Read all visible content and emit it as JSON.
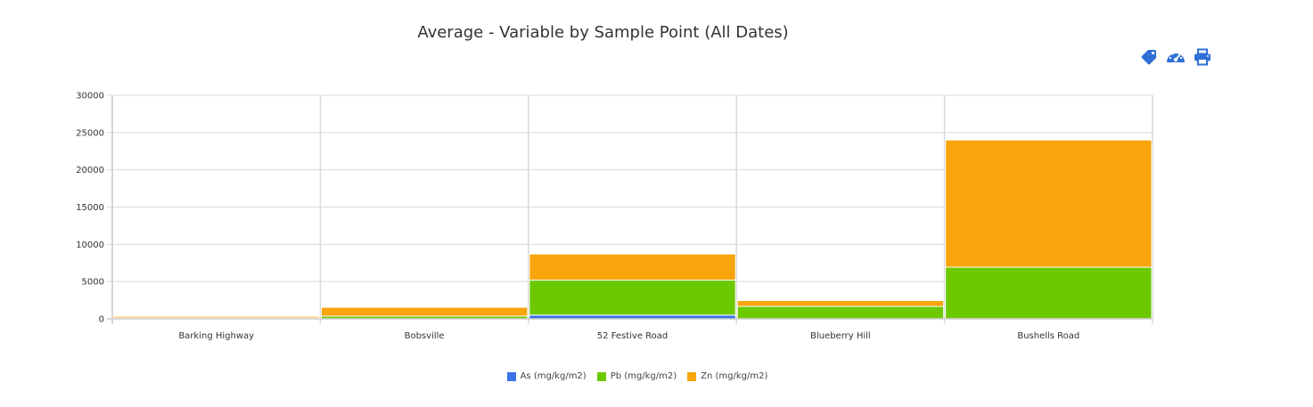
{
  "chart_data": {
    "type": "bar",
    "stacked": true,
    "title": "Average - Variable by Sample Point (All Dates)",
    "categories": [
      "Barking Highway",
      "Bobsville",
      "52 Festive Road",
      "Blueberry Hill",
      "Bushells Road"
    ],
    "series": [
      {
        "name": "As (mg/kg/m2)",
        "color": "#3a72e8",
        "values": [
          5,
          10,
          500,
          20,
          30
        ]
      },
      {
        "name": "Pb (mg/kg/m2)",
        "color": "#6cc900",
        "values": [
          120,
          350,
          4700,
          1650,
          6900
        ]
      },
      {
        "name": "Zn (mg/kg/m2)",
        "color": "#f7a50b",
        "values": [
          215,
          1190,
          3500,
          780,
          17070
        ]
      }
    ],
    "ylim": [
      0,
      30000
    ],
    "yticks": [
      "30000",
      "25000",
      "20000",
      "15000",
      "10000",
      "5000",
      "0"
    ],
    "grid": true,
    "legend": "bottom-center"
  },
  "toolbar": {
    "icons": [
      "tag-icon",
      "dashboard-icon",
      "print-icon"
    ],
    "color": "#2f6fd6"
  }
}
